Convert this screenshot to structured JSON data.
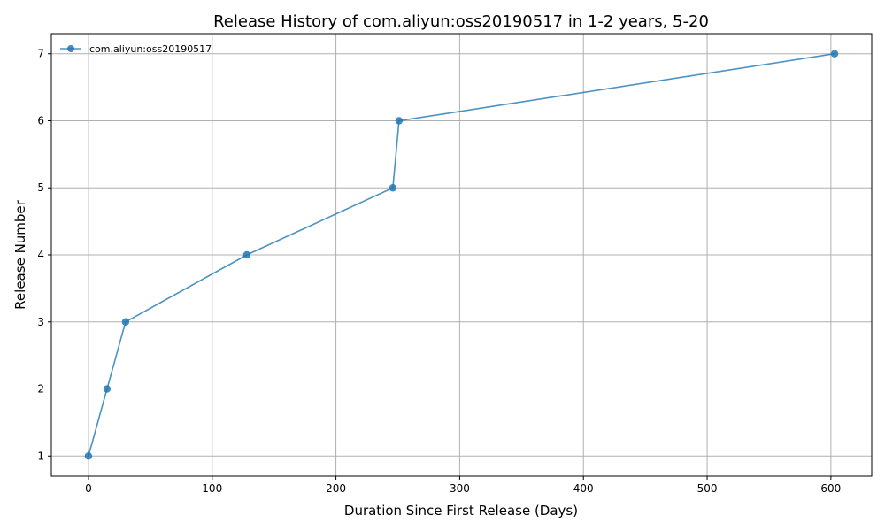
{
  "chart_data": {
    "type": "line",
    "title": "Release History of com.aliyun:oss20190517 in 1-2 years, 5-20",
    "xlabel": "Duration Since First Release (Days)",
    "ylabel": "Release Number",
    "xlim": [
      -30,
      633
    ],
    "ylim": [
      0.7,
      7.3
    ],
    "xticks": [
      0,
      100,
      200,
      300,
      400,
      500,
      600
    ],
    "yticks": [
      1,
      2,
      3,
      4,
      5,
      6,
      7
    ],
    "grid": true,
    "legend_position": "top-left",
    "series": [
      {
        "name": "com.aliyun:oss20190517",
        "color": "#1f77b4",
        "marker": "circle",
        "x": [
          0,
          15,
          30,
          128,
          246,
          251,
          603
        ],
        "y": [
          1,
          2,
          3,
          4,
          5,
          6,
          7
        ]
      }
    ]
  }
}
